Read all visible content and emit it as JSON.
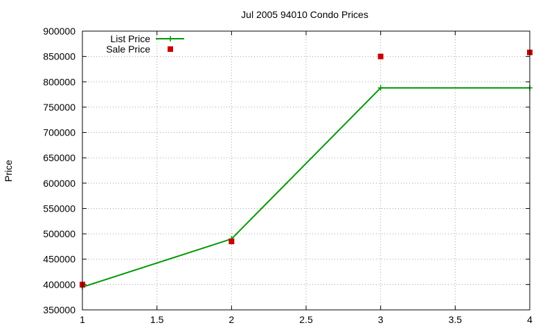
{
  "chart_data": {
    "type": "line",
    "title": "Jul 2005 94010 Condo Prices",
    "xlabel": "",
    "ylabel": "Price",
    "xlim": [
      1,
      4
    ],
    "ylim": [
      350000,
      900000
    ],
    "x_ticks": [
      1,
      1.5,
      2,
      2.5,
      3,
      3.5,
      4
    ],
    "x_tick_labels": [
      "1",
      "1.5",
      "2",
      "2.5",
      "3",
      "3.5",
      "4"
    ],
    "y_ticks": [
      350000,
      400000,
      450000,
      500000,
      550000,
      600000,
      650000,
      700000,
      750000,
      800000,
      850000,
      900000
    ],
    "y_tick_labels": [
      "350000",
      "400000",
      "450000",
      "500000",
      "550000",
      "600000",
      "650000",
      "700000",
      "750000",
      "800000",
      "850000",
      "900000"
    ],
    "grid": true,
    "legend_position": "top-left",
    "series": [
      {
        "name": "List Price",
        "style": "line-plus",
        "color": "#009900",
        "x": [
          1,
          2,
          3,
          4
        ],
        "y": [
          395000,
          490000,
          788000,
          788000
        ]
      },
      {
        "name": "Sale Price",
        "style": "square-markers",
        "color": "#cc0000",
        "x": [
          1,
          2,
          3,
          4
        ],
        "y": [
          400000,
          485000,
          850000,
          858000
        ]
      }
    ]
  }
}
